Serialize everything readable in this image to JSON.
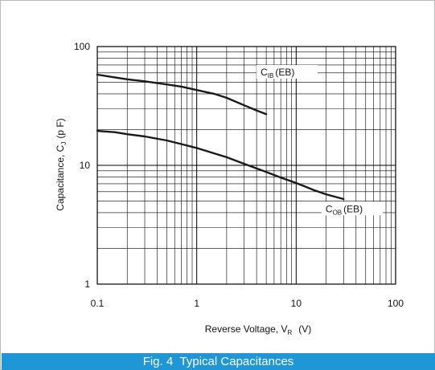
{
  "chart_data": {
    "type": "line",
    "title": "Typical Capacitances",
    "figure_label": "Fig. 4",
    "xlabel": {
      "main": "Reverse Voltage, V",
      "sub": "R",
      "unit": "(V)"
    },
    "ylabel": {
      "main": "Capacitance, C",
      "sub": "J",
      "unit": "(p F)"
    },
    "x_scale": "log",
    "y_scale": "log",
    "xlim": [
      0.1,
      100
    ],
    "ylim": [
      1,
      100
    ],
    "grid": true,
    "x_ticks": [
      "0.1",
      "1",
      "10",
      "100"
    ],
    "y_ticks": [
      "1",
      "10",
      "100"
    ],
    "series": [
      {
        "name": "C_IB (EB)",
        "label_main": "C",
        "label_sub": "IB",
        "label_suffix": "(EB)",
        "x": [
          0.1,
          0.15,
          0.2,
          0.3,
          0.5,
          0.7,
          1.0,
          1.5,
          2.0,
          3.0,
          4.0,
          5.0
        ],
        "y": [
          58,
          55,
          53,
          51,
          48,
          46,
          43,
          40,
          37,
          32,
          29,
          27
        ]
      },
      {
        "name": "C_OB (EB)",
        "label_main": "C",
        "label_sub": "OB",
        "label_suffix": "(EB)",
        "x": [
          0.1,
          0.15,
          0.2,
          0.3,
          0.5,
          0.7,
          1.0,
          1.5,
          2.0,
          3.0,
          5.0,
          7.0,
          10,
          15,
          20,
          30
        ],
        "y": [
          19.5,
          19,
          18.3,
          17.5,
          16.2,
          15.1,
          14,
          12.6,
          11.7,
          10.3,
          8.8,
          7.9,
          7.1,
          6.2,
          5.7,
          5.2
        ]
      }
    ]
  }
}
